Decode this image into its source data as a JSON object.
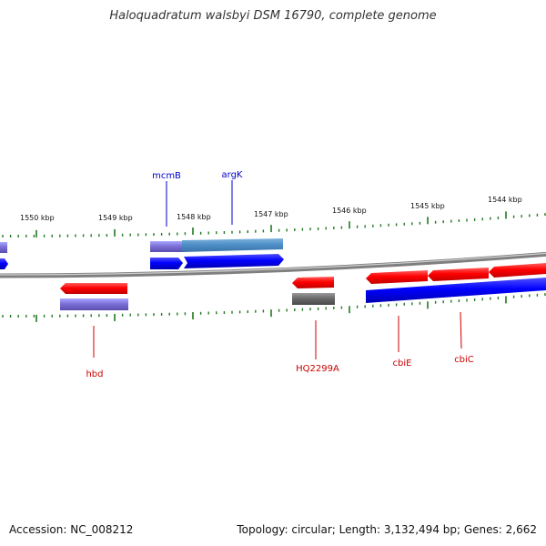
{
  "title": "Haloquadratum walsbyi DSM 16790, complete genome",
  "footer": {
    "accession": "Accession: NC_008212",
    "summary": "Topology: circular; Length: 3,132,494 bp; Genes: 2,662"
  },
  "kbp_labels": [
    "1550 kbp",
    "1549 kbp",
    "1548 kbp",
    "1547 kbp",
    "1546 kbp",
    "1545 kbp",
    "1544 kbp"
  ],
  "gene_labels": [
    {
      "text": "mcmB",
      "color": "#0000cc"
    },
    {
      "text": "argK",
      "color": "#0000cc"
    },
    {
      "text": "hbd",
      "color": "#cc0000"
    },
    {
      "text": "HQ2299A",
      "color": "#cc0000"
    },
    {
      "text": "cbiE",
      "color": "#cc0000"
    },
    {
      "text": "cbiC",
      "color": "#cc0000"
    }
  ],
  "colors": {
    "forward_cds": "#ff0000",
    "reverse_cds": "#0000ff",
    "rna": "#8080ff",
    "steelblue": "#4f90c8",
    "gray": "#707070",
    "backbone": "#8a8a8a",
    "tick": "#207a20"
  }
}
